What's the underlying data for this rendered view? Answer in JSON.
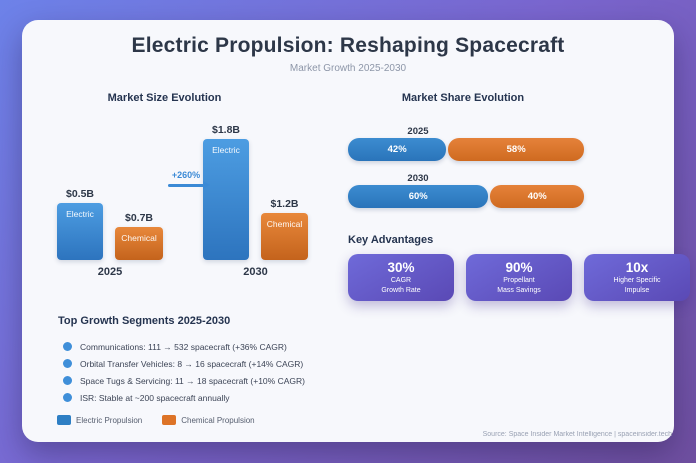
{
  "title": "Electric Propulsion: Reshaping Spacecraft",
  "subtitle": "Market Growth 2025-2030",
  "colors": {
    "electric": "#2e7fc4",
    "chemical": "#dd7327",
    "background_gradient_start": "#6d82e9",
    "background_gradient_end": "#6f4fa0",
    "advantage_card_gradient_start": "#6f6ad9",
    "advantage_card_gradient_end": "#5a49b5",
    "arrow_accent": "#3b8ad6",
    "heading_text": "#253450"
  },
  "market_size": {
    "heading": "Market Size Evolution",
    "growth_label": "+260%",
    "groups": [
      {
        "year": "2025",
        "bars": [
          {
            "label": "Electric",
            "value": "$0.5B"
          },
          {
            "label": "Chemical",
            "value": "$0.7B"
          }
        ]
      },
      {
        "year": "2030",
        "bars": [
          {
            "label": "Electric",
            "value": "$1.8B"
          },
          {
            "label": "Chemical",
            "value": "$1.2B"
          }
        ]
      }
    ]
  },
  "market_share": {
    "heading": "Market Share Evolution",
    "rows": [
      {
        "year": "2025",
        "electric_pct": "42%",
        "chemical_pct": "58%"
      },
      {
        "year": "2030",
        "electric_pct": "60%",
        "chemical_pct": "40%"
      }
    ]
  },
  "key_advantages": {
    "heading": "Key Advantages",
    "cards": [
      {
        "value": "30%",
        "line1": "CAGR",
        "line2": "Growth Rate"
      },
      {
        "value": "90%",
        "line1": "Propellant",
        "line2": "Mass Savings"
      },
      {
        "value": "10x",
        "line1": "Higher Specific",
        "line2": "Impulse"
      }
    ]
  },
  "growth_segments": {
    "heading": "Top Growth Segments 2025-2030",
    "items": [
      "Communications: 111 → 532 spacecraft (+36% CAGR)",
      "Orbital Transfer Vehicles: 8 → 16 spacecraft (+14% CAGR)",
      "Space Tugs & Servicing: 11 → 18 spacecraft (+10% CAGR)",
      "ISR: Stable at ~200 spacecraft annually"
    ]
  },
  "legend": {
    "electric": "Electric Propulsion",
    "chemical": "Chemical Propulsion"
  },
  "footer": {
    "source": "Source: Space Insider Market Intelligence | spaceinsider.tech"
  },
  "chart_data": [
    {
      "type": "bar",
      "title": "Market Size Evolution",
      "categories": [
        "2025",
        "2030"
      ],
      "series": [
        {
          "name": "Electric",
          "values": [
            0.5,
            1.8
          ]
        },
        {
          "name": "Chemical",
          "values": [
            0.7,
            1.2
          ]
        }
      ],
      "unit": "USD billions",
      "annotations": [
        "+260% growth of Electric segment from 2025 to 2030"
      ],
      "legend_position": "bottom-left",
      "grid": false
    },
    {
      "type": "bar",
      "subtype": "horizontal-stacked-100pct",
      "title": "Market Share Evolution",
      "categories": [
        "2025",
        "2030"
      ],
      "series": [
        {
          "name": "Electric",
          "values": [
            42,
            60
          ]
        },
        {
          "name": "Chemical",
          "values": [
            58,
            40
          ]
        }
      ],
      "unit": "%",
      "grid": false
    }
  ]
}
